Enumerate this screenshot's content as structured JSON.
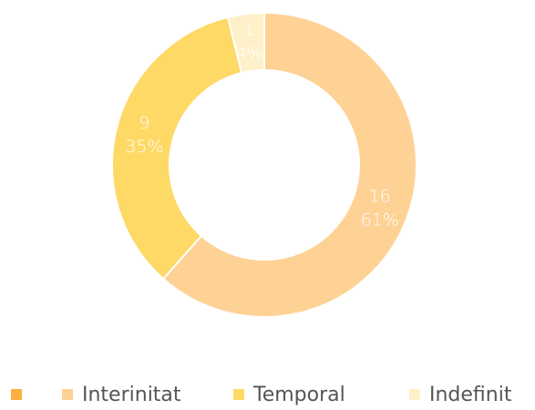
{
  "chart_data": {
    "type": "donut",
    "categories": [
      null,
      "Interinitat",
      "Temporal",
      "Indefinit"
    ],
    "values": [
      0,
      16,
      9,
      1
    ],
    "percent_labels": [
      null,
      "61%",
      "35%",
      "4%"
    ],
    "colors": [
      "#fbb040",
      "#fed294",
      "#fed966",
      "#fef0c8"
    ],
    "legend": "bottom"
  }
}
